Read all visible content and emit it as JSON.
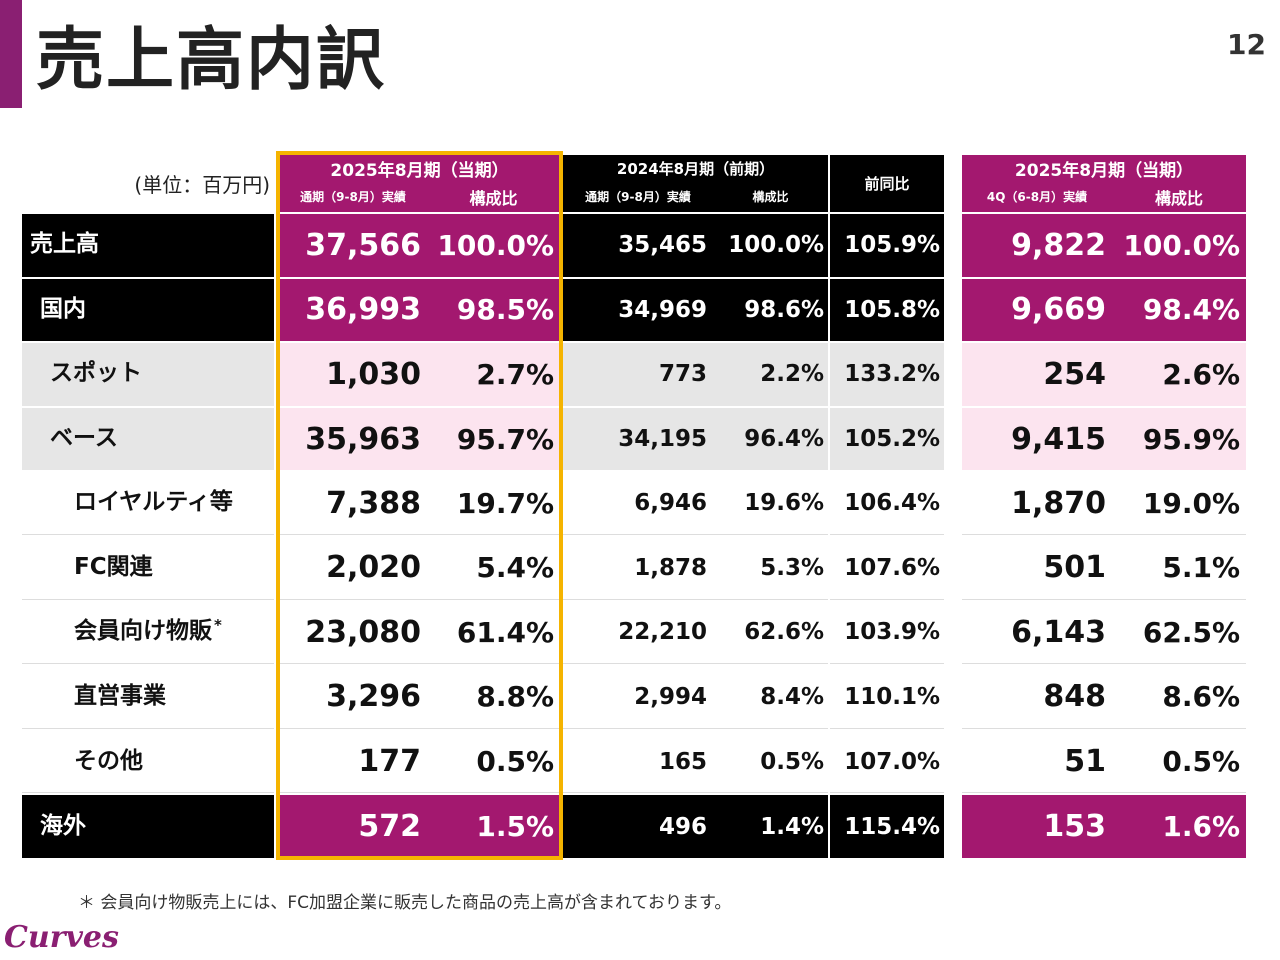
{
  "page": {
    "title": "売上高内訳",
    "number": "12"
  },
  "unit_label": "(単位：百万円)",
  "headers": {
    "current_year": {
      "period": "2025年8月期（当期）",
      "actual": "通期（9-8月）実績",
      "ratio": "構成比"
    },
    "prior_year": {
      "period": "2024年8月期（前期）",
      "actual": "通期（9-8月）実績",
      "ratio": "構成比"
    },
    "yoy": "前同比",
    "current_q4": {
      "period": "2025年8月期（当期）",
      "actual": "4Q（6-8月）実績",
      "ratio": "構成比"
    }
  },
  "rows": [
    {
      "label": "売上高",
      "cur": "37,566",
      "cur_ratio": "100.0%",
      "prev": "35,465",
      "prev_ratio": "100.0%",
      "yoy": "105.9%",
      "q4": "9,822",
      "q4_ratio": "100.0%"
    },
    {
      "label": "国内",
      "cur": "36,993",
      "cur_ratio": "98.5%",
      "prev": "34,969",
      "prev_ratio": "98.6%",
      "yoy": "105.8%",
      "q4": "9,669",
      "q4_ratio": "98.4%"
    },
    {
      "label": "スポット",
      "cur": "1,030",
      "cur_ratio": "2.7%",
      "prev": "773",
      "prev_ratio": "2.2%",
      "yoy": "133.2%",
      "q4": "254",
      "q4_ratio": "2.6%"
    },
    {
      "label": "ベース",
      "cur": "35,963",
      "cur_ratio": "95.7%",
      "prev": "34,195",
      "prev_ratio": "96.4%",
      "yoy": "105.2%",
      "q4": "9,415",
      "q4_ratio": "95.9%"
    },
    {
      "label": "ロイヤルティ等",
      "cur": "7,388",
      "cur_ratio": "19.7%",
      "prev": "6,946",
      "prev_ratio": "19.6%",
      "yoy": "106.4%",
      "q4": "1,870",
      "q4_ratio": "19.0%"
    },
    {
      "label": "FC関連",
      "cur": "2,020",
      "cur_ratio": "5.4%",
      "prev": "1,878",
      "prev_ratio": "5.3%",
      "yoy": "107.6%",
      "q4": "501",
      "q4_ratio": "5.1%"
    },
    {
      "label": "会員向け物販",
      "note_mark": "*",
      "cur": "23,080",
      "cur_ratio": "61.4%",
      "prev": "22,210",
      "prev_ratio": "62.6%",
      "yoy": "103.9%",
      "q4": "6,143",
      "q4_ratio": "62.5%"
    },
    {
      "label": "直営事業",
      "cur": "3,296",
      "cur_ratio": "8.8%",
      "prev": "2,994",
      "prev_ratio": "8.4%",
      "yoy": "110.1%",
      "q4": "848",
      "q4_ratio": "8.6%"
    },
    {
      "label": "その他",
      "cur": "177",
      "cur_ratio": "0.5%",
      "prev": "165",
      "prev_ratio": "0.5%",
      "yoy": "107.0%",
      "q4": "51",
      "q4_ratio": "0.5%"
    },
    {
      "label": "海外",
      "cur": "572",
      "cur_ratio": "1.5%",
      "prev": "496",
      "prev_ratio": "1.4%",
      "yoy": "115.4%",
      "q4": "153",
      "q4_ratio": "1.6%"
    }
  ],
  "footnote": "＊ 会員向け物販売上には、FC加盟企業に販売した商品の売上高が含まれております。",
  "logo_text": "Curves",
  "colors": {
    "accent_purple": "#a3186f",
    "header_black": "#000000",
    "pink_light": "#fce4ef",
    "gray_light": "#e6e6e6",
    "highlight_gold": "#f5b400",
    "title_bar": "#8a1f72"
  }
}
